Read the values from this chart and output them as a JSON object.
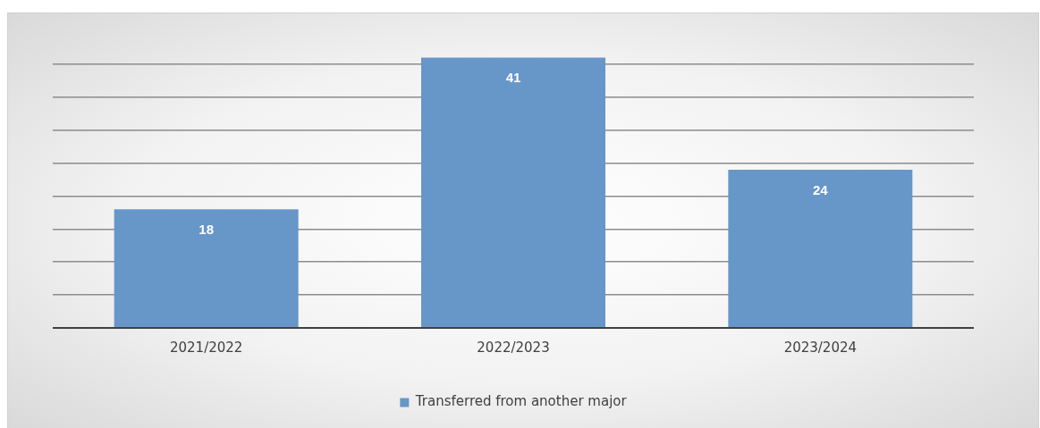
{
  "chart_data": {
    "type": "bar",
    "categories": [
      "2021/2022",
      "2022/2023",
      "2023/2024"
    ],
    "series": [
      {
        "name": "Transferred from another major",
        "color": "#6796c8",
        "values": [
          18,
          41,
          24
        ]
      }
    ],
    "yticks": [
      {
        "value": 0,
        "label": null
      },
      {
        "value": 5,
        "label": null
      },
      {
        "value": 10,
        "label": null
      },
      {
        "value": 15,
        "label": null
      },
      {
        "value": 20,
        "label": null
      },
      {
        "value": 25,
        "label": null
      },
      {
        "value": 30,
        "label": null
      },
      {
        "value": 35,
        "label": null
      },
      {
        "value": 40,
        "label": null
      }
    ],
    "grid": "y",
    "tick_labels": "x",
    "data_labels": true,
    "legend": "bottom"
  }
}
